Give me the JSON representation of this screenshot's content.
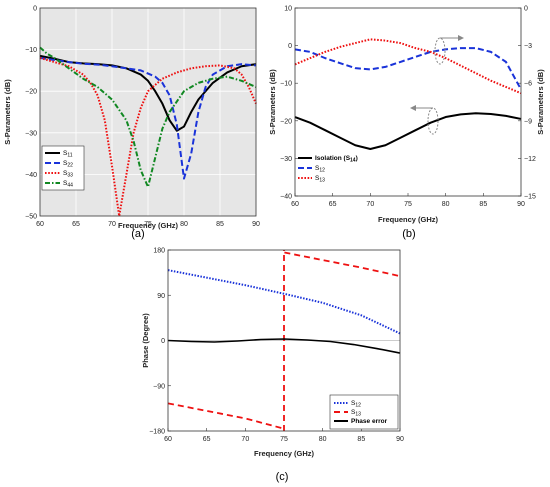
{
  "panels": [
    "(a)",
    "(b)",
    "(c)"
  ],
  "chart_data": [
    {
      "id": "a",
      "type": "line",
      "panel_label": "(a)",
      "xlabel": "Frequency (GHz)",
      "ylabel": "S-Parameters (dB)",
      "xlim": [
        60,
        90
      ],
      "ylim": [
        -50,
        0
      ],
      "xticks": [
        60,
        65,
        70,
        75,
        80,
        85,
        90
      ],
      "yticks": [
        0,
        -10,
        -20,
        -30,
        -40,
        -50
      ],
      "xtick_labels": [
        "60",
        "65",
        "70",
        "75",
        "80",
        "85",
        "90"
      ],
      "ytick_labels": [
        "0",
        "−10",
        "−20",
        "−30",
        "−40",
        "−50"
      ],
      "grid": true,
      "legend_position": "bottom-left",
      "series": [
        {
          "name": "S11",
          "sub": "11",
          "color": "#000000",
          "dash": "solid",
          "x": [
            60,
            62,
            64,
            66,
            68,
            70,
            72,
            74,
            75,
            76,
            77,
            78,
            79,
            80,
            81,
            82,
            84,
            86,
            88,
            90
          ],
          "y": [
            -11.5,
            -12.2,
            -13,
            -13.3,
            -13.5,
            -13.8,
            -14.5,
            -16,
            -17.5,
            -20,
            -23,
            -27,
            -29.5,
            -28.5,
            -25,
            -22,
            -18,
            -15.5,
            -14,
            -13.5
          ]
        },
        {
          "name": "S22",
          "sub": "22",
          "color": "#1a33d9",
          "dash": "6,3",
          "x": [
            60,
            62,
            64,
            66,
            68,
            70,
            72,
            74,
            76,
            77,
            78,
            79,
            80,
            81,
            82,
            83,
            84,
            86,
            88,
            90
          ],
          "y": [
            -12,
            -12.5,
            -13,
            -13.4,
            -13.6,
            -14,
            -14.5,
            -15,
            -16.5,
            -18,
            -21,
            -28,
            -41,
            -35,
            -25,
            -19,
            -16,
            -14,
            -13.5,
            -13.8
          ]
        },
        {
          "name": "S33",
          "sub": "33",
          "color": "#ee1111",
          "dash": "1.6,1.6",
          "x": [
            60,
            62,
            64,
            66,
            67,
            68,
            69,
            70,
            71,
            72,
            73,
            74,
            75,
            77,
            79,
            81,
            83,
            85,
            87,
            88,
            89,
            90
          ],
          "y": [
            -12,
            -13,
            -14,
            -16,
            -18,
            -21,
            -27,
            -38,
            -50,
            -40,
            -30,
            -24,
            -20,
            -17,
            -15.5,
            -14.5,
            -14,
            -13.8,
            -14.5,
            -16,
            -19,
            -23
          ]
        },
        {
          "name": "S44",
          "sub": "44",
          "color": "#118822",
          "dash": "5,2,1.5,2",
          "x": [
            60,
            61,
            62,
            64,
            66,
            68,
            70,
            72,
            73,
            74,
            75,
            76,
            77,
            78,
            80,
            82,
            84,
            86,
            88,
            90
          ],
          "y": [
            -9.5,
            -11,
            -12,
            -14.5,
            -17,
            -19,
            -22,
            -27,
            -32,
            -39,
            -43,
            -36,
            -29,
            -25,
            -20,
            -18,
            -17,
            -16.5,
            -17.5,
            -19
          ]
        }
      ]
    },
    {
      "id": "b",
      "type": "line",
      "panel_label": "(b)",
      "xlabel": "Frequency (GHz)",
      "ylabel_left": "S-Parameters (dB)",
      "ylabel_right": "S-Parameters (dB)",
      "xlim": [
        60,
        90
      ],
      "ylim_left": [
        -40,
        10
      ],
      "ylim_right": [
        -15,
        0
      ],
      "xticks": [
        60,
        65,
        70,
        75,
        80,
        85,
        90
      ],
      "yticks_left": [
        10,
        0,
        -10,
        -20,
        -30,
        -40
      ],
      "yticks_right": [
        0,
        -3,
        -6,
        -9,
        -12,
        -15
      ],
      "xtick_labels": [
        "60",
        "65",
        "70",
        "75",
        "80",
        "85",
        "90"
      ],
      "ytick_labels_left": [
        "10",
        "0",
        "−10",
        "−20",
        "−30",
        "−40"
      ],
      "ytick_labels_right": [
        "0",
        "−3",
        "−6",
        "−9",
        "−12",
        "−15"
      ],
      "grid": false,
      "legend_position": "bottom-left",
      "series": [
        {
          "name": "Isolation (S14)",
          "base": "Isolation (S",
          "sub": "14",
          "tail": ")",
          "color": "#000000",
          "dash": "solid",
          "axis": "left",
          "bold": true,
          "x": [
            60,
            62,
            64,
            66,
            68,
            70,
            72,
            74,
            76,
            78,
            80,
            82,
            84,
            86,
            88,
            90
          ],
          "y": [
            -19,
            -20.5,
            -22.5,
            -24.5,
            -26.5,
            -27.5,
            -26.5,
            -24.5,
            -22.5,
            -20.5,
            -19,
            -18.3,
            -18,
            -18.2,
            -18.7,
            -19.5
          ]
        },
        {
          "name": "S12",
          "sub": "12",
          "color": "#1a33d9",
          "dash": "6,3",
          "axis": "right",
          "x": [
            60,
            62,
            64,
            66,
            68,
            70,
            72,
            74,
            76,
            78,
            80,
            82,
            84,
            86,
            88,
            90
          ],
          "y": [
            -3.3,
            -3.5,
            -4,
            -4.4,
            -4.8,
            -4.9,
            -4.7,
            -4.3,
            -3.9,
            -3.5,
            -3.3,
            -3.2,
            -3.2,
            -3.5,
            -4.3,
            -6.5
          ]
        },
        {
          "name": "S13",
          "sub": "13",
          "color": "#ee1111",
          "dash": "1.6,1.6",
          "axis": "right",
          "x": [
            60,
            62,
            64,
            66,
            68,
            70,
            72,
            74,
            76,
            78,
            80,
            82,
            84,
            86,
            88,
            90
          ],
          "y": [
            -4.5,
            -4,
            -3.5,
            -3.1,
            -2.8,
            -2.5,
            -2.6,
            -2.8,
            -3.2,
            -3.5,
            -4,
            -4.6,
            -5.2,
            -5.8,
            -6.3,
            -6.8
          ]
        }
      ]
    },
    {
      "id": "c",
      "type": "line",
      "panel_label": "(c)",
      "xlabel": "Frequency (GHz)",
      "ylabel": "Phase (Degree)",
      "xlim": [
        60,
        90
      ],
      "ylim": [
        -180,
        180
      ],
      "xticks": [
        60,
        65,
        70,
        75,
        80,
        85,
        90
      ],
      "yticks": [
        180,
        90,
        0,
        -90,
        -180
      ],
      "xtick_labels": [
        "60",
        "65",
        "70",
        "75",
        "80",
        "85",
        "90"
      ],
      "ytick_labels": [
        "180",
        "90",
        "0",
        "−90",
        "−180"
      ],
      "grid": false,
      "zero_line": true,
      "legend_position": "bottom-right",
      "series": [
        {
          "name": "S12",
          "sub": "12",
          "color": "#1a33d9",
          "dash": "1.5,1.5",
          "width": 2,
          "x": [
            60,
            65,
            70,
            75,
            80,
            85,
            90
          ],
          "y": [
            140,
            125,
            110,
            93,
            75,
            50,
            14
          ]
        },
        {
          "name": "S13",
          "sub": "13",
          "color": "#ee1111",
          "dash": "6,4",
          "width": 1.8,
          "segments": [
            {
              "x": [
                60,
                65,
                70,
                74.9
              ],
              "y": [
                -125,
                -140,
                -155,
                -175
              ]
            },
            {
              "x": [
                75,
                75
              ],
              "y": [
                -180,
                180
              ]
            },
            {
              "x": [
                75.05,
                80,
                85,
                90
              ],
              "y": [
                175,
                160,
                145,
                128
              ]
            }
          ]
        },
        {
          "name": "Phase error",
          "color": "#000000",
          "dash": "solid",
          "width": 1.6,
          "bold": true,
          "x": [
            60,
            63,
            66,
            69,
            72,
            75,
            78,
            81,
            84,
            87,
            90
          ],
          "y": [
            0,
            -2,
            -3,
            -1,
            2,
            3,
            1,
            -2,
            -8,
            -16,
            -25
          ]
        }
      ]
    }
  ]
}
